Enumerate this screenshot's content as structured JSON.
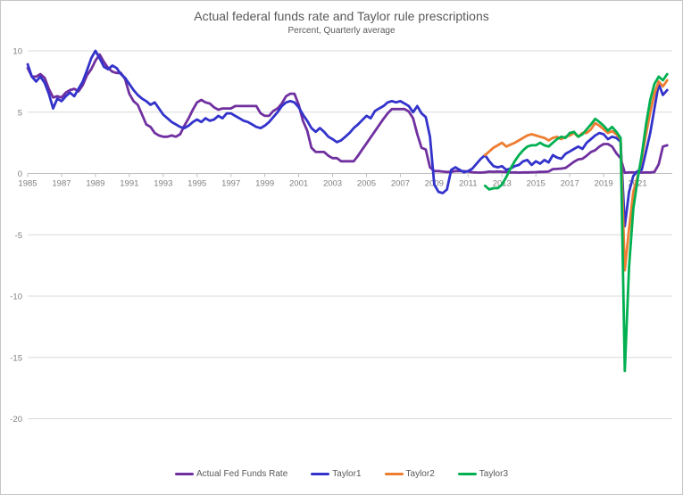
{
  "chart_data": {
    "type": "line",
    "title": "Actual federal funds rate and Taylor rule prescriptions",
    "subtitle": "Percent, Quarterly average",
    "x_axis": {
      "unit": "year_quarterly",
      "range": [
        1985.0,
        2022.75
      ],
      "tick_years": [
        1985,
        1987,
        1989,
        1991,
        1993,
        1995,
        1997,
        1999,
        2001,
        2003,
        2005,
        2007,
        2009,
        2011,
        2013,
        2015,
        2017,
        2019,
        2021
      ]
    },
    "y_axis": {
      "range": [
        -20,
        10
      ],
      "ticks": [
        10,
        5,
        0,
        -5,
        -10,
        -15,
        -20
      ]
    },
    "grid": "horizontal",
    "legend_position": "bottom",
    "colors": {
      "grid": "#d9d9d9",
      "axis": "#bfbfbf",
      "tick_label": "#7f7f7f",
      "title_text": "#595959"
    },
    "series": [
      {
        "name": "Actual Fed Funds Rate",
        "color": "#7030A0",
        "start": 1985.0,
        "step": 0.25,
        "values": [
          8.6,
          7.9,
          7.9,
          8.1,
          7.8,
          6.9,
          6.2,
          6.3,
          6.2,
          6.6,
          6.8,
          6.9,
          6.7,
          7.2,
          8.0,
          8.5,
          9.2,
          9.7,
          9.1,
          8.6,
          8.3,
          8.2,
          8.2,
          7.7,
          6.5,
          5.9,
          5.6,
          4.8,
          4.0,
          3.8,
          3.3,
          3.1,
          3.0,
          3.0,
          3.1,
          3.0,
          3.2,
          3.9,
          4.5,
          5.2,
          5.8,
          6.0,
          5.8,
          5.7,
          5.4,
          5.2,
          5.3,
          5.3,
          5.3,
          5.5,
          5.5,
          5.5,
          5.5,
          5.5,
          5.5,
          4.9,
          4.7,
          4.7,
          5.1,
          5.3,
          5.7,
          6.3,
          6.5,
          6.5,
          5.6,
          4.3,
          3.5,
          2.1,
          1.75,
          1.75,
          1.75,
          1.45,
          1.25,
          1.25,
          1.0,
          1.0,
          1.0,
          1.0,
          1.45,
          1.95,
          2.45,
          2.95,
          3.45,
          3.95,
          4.45,
          4.9,
          5.25,
          5.25,
          5.25,
          5.25,
          5.05,
          4.5,
          3.2,
          2.1,
          1.95,
          0.5,
          0.2,
          0.2,
          0.15,
          0.12,
          0.13,
          0.19,
          0.19,
          0.19,
          0.16,
          0.1,
          0.08,
          0.07,
          0.1,
          0.15,
          0.14,
          0.16,
          0.14,
          0.12,
          0.08,
          0.09,
          0.07,
          0.09,
          0.09,
          0.1,
          0.11,
          0.13,
          0.14,
          0.16,
          0.36,
          0.37,
          0.4,
          0.45,
          0.7,
          0.95,
          1.15,
          1.2,
          1.45,
          1.75,
          1.9,
          2.2,
          2.4,
          2.4,
          2.2,
          1.65,
          1.25,
          0.06,
          0.09,
          0.09,
          0.08,
          0.07,
          0.09,
          0.08,
          0.12,
          0.75,
          2.2,
          2.3
        ]
      },
      {
        "name": "Taylor1",
        "color": "#3333CC",
        "start": 1985.0,
        "step": 0.25,
        "values": [
          8.9,
          7.9,
          7.5,
          7.9,
          7.4,
          6.5,
          5.3,
          6.1,
          5.9,
          6.3,
          6.6,
          6.3,
          6.9,
          7.5,
          8.4,
          9.4,
          10.0,
          9.4,
          8.7,
          8.5,
          8.8,
          8.6,
          8.1,
          7.8,
          7.3,
          6.8,
          6.4,
          6.1,
          5.9,
          5.6,
          5.8,
          5.3,
          4.8,
          4.5,
          4.2,
          4.0,
          3.8,
          3.7,
          3.9,
          4.2,
          4.4,
          4.2,
          4.5,
          4.3,
          4.4,
          4.7,
          4.5,
          4.9,
          4.9,
          4.7,
          4.5,
          4.3,
          4.2,
          4.0,
          3.8,
          3.7,
          3.9,
          4.2,
          4.6,
          5.0,
          5.5,
          5.8,
          5.9,
          5.8,
          5.4,
          4.8,
          4.3,
          3.7,
          3.4,
          3.7,
          3.4,
          3.0,
          2.8,
          2.55,
          2.7,
          3.0,
          3.3,
          3.7,
          4.0,
          4.35,
          4.7,
          4.5,
          5.1,
          5.3,
          5.5,
          5.8,
          5.9,
          5.8,
          5.9,
          5.7,
          5.5,
          5.0,
          5.5,
          4.9,
          4.6,
          3.0,
          -0.9,
          -1.5,
          -1.6,
          -1.3,
          0.3,
          0.5,
          0.3,
          0.1,
          0.2,
          0.4,
          0.8,
          1.2,
          1.5,
          1.0,
          0.6,
          0.5,
          0.6,
          0.3,
          0.4,
          0.6,
          0.7,
          1.0,
          1.1,
          0.7,
          1.0,
          0.8,
          1.1,
          0.9,
          1.5,
          1.3,
          1.2,
          1.6,
          1.8,
          2.0,
          2.2,
          2.0,
          2.5,
          2.8,
          3.1,
          3.3,
          3.2,
          2.8,
          3.0,
          2.9,
          2.6,
          -4.3,
          -1.5,
          -0.2,
          0.2,
          0.3,
          1.8,
          3.3,
          5.3,
          7.3,
          6.4,
          6.8
        ]
      },
      {
        "name": "Taylor2",
        "color": "#ED7D31",
        "start": 2012.0,
        "step": 0.25,
        "values": [
          1.5,
          1.8,
          2.1,
          2.3,
          2.5,
          2.2,
          2.35,
          2.5,
          2.7,
          2.9,
          3.1,
          3.2,
          3.1,
          3.0,
          2.9,
          2.7,
          2.9,
          3.0,
          2.8,
          3.0,
          3.1,
          3.3,
          3.0,
          3.3,
          3.3,
          3.6,
          4.1,
          3.9,
          3.6,
          3.3,
          3.45,
          3.2,
          2.8,
          -7.9,
          -4.5,
          -1.5,
          -0.3,
          1.2,
          3.2,
          5.0,
          6.5,
          7.5,
          7.1,
          7.6
        ]
      },
      {
        "name": "Taylor3",
        "color": "#00B050",
        "start": 2012.0,
        "step": 0.25,
        "values": [
          -1.0,
          -1.3,
          -1.2,
          -1.2,
          -0.9,
          -0.3,
          0.4,
          1.0,
          1.5,
          1.9,
          2.2,
          2.3,
          2.3,
          2.5,
          2.3,
          2.2,
          2.5,
          2.8,
          3.0,
          2.9,
          3.3,
          3.4,
          3.0,
          3.2,
          3.6,
          4.0,
          4.45,
          4.2,
          3.9,
          3.5,
          3.8,
          3.4,
          2.9,
          -16.1,
          -7.6,
          -2.9,
          -0.5,
          1.5,
          4.0,
          6.0,
          7.3,
          7.9,
          7.6,
          8.1
        ]
      }
    ]
  }
}
